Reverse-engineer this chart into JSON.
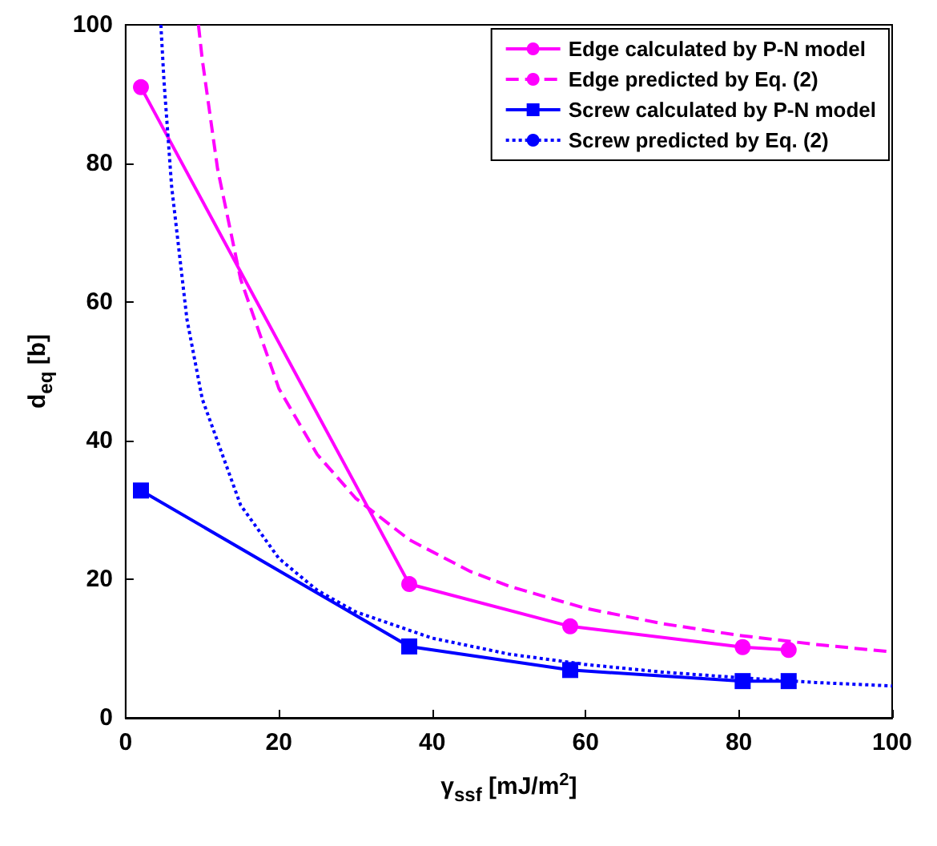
{
  "chart_data": {
    "type": "line",
    "xlabel": "γ$_{ssf}$ [mJ/m$^{2}$]",
    "ylabel": "d$_{eq}$ [b]",
    "xlim": [
      0,
      100
    ],
    "ylim": [
      0,
      100
    ],
    "xticks": [
      0,
      20,
      40,
      60,
      80,
      100
    ],
    "yticks": [
      0,
      20,
      40,
      60,
      80,
      100
    ],
    "grid": false,
    "legend": "top right",
    "series": [
      {
        "name": "Edge calculated by P-N model",
        "color": "#ff00ff",
        "marker": "circle",
        "line_style": "solid",
        "x": [
          2,
          37,
          58,
          80.5,
          86.5
        ],
        "values": [
          91,
          19.3,
          13.2,
          10.2,
          9.8
        ]
      },
      {
        "name": "Edge predicted by Eq. (2)",
        "color": "#ff00ff",
        "marker": "none",
        "line_style": "dashed",
        "x": [
          9.5,
          10,
          12,
          15,
          20,
          25,
          30,
          37,
          45,
          50,
          60,
          70,
          80,
          90,
          100
        ],
        "values": [
          100,
          95,
          79.2,
          63.3,
          47.5,
          38,
          31.7,
          25.7,
          21.1,
          19,
          15.8,
          13.6,
          11.9,
          10.6,
          9.5
        ]
      },
      {
        "name": "Screw calculated by P-N model",
        "color": "#0000ff",
        "marker": "square",
        "line_style": "solid",
        "x": [
          2,
          37,
          58,
          80.5,
          86.5
        ],
        "values": [
          32.8,
          10.3,
          6.9,
          5.3,
          5.3
        ]
      },
      {
        "name": "Screw predicted by Eq. (2)",
        "color": "#0000ff",
        "marker": "none",
        "line_style": "dotted",
        "x": [
          4.6,
          5,
          6,
          8,
          10,
          15,
          20,
          25,
          30,
          40,
          50,
          60,
          70,
          80,
          90,
          100
        ],
        "values": [
          100,
          92,
          76.7,
          57.5,
          46,
          30.7,
          23,
          18.4,
          15.3,
          11.5,
          9.2,
          7.7,
          6.6,
          5.8,
          5.1,
          4.6
        ]
      }
    ]
  }
}
